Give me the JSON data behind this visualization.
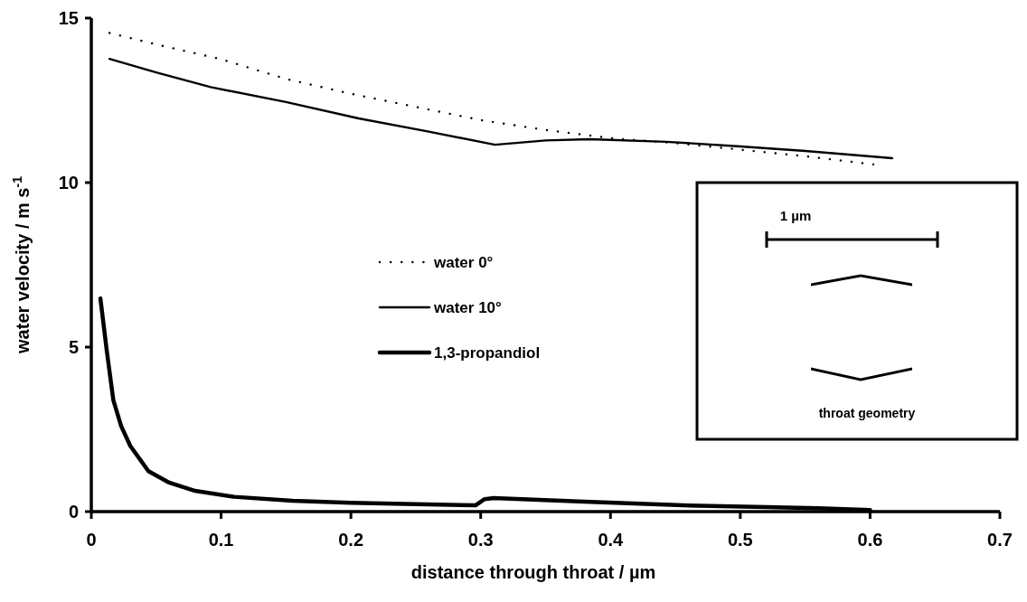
{
  "chart_data": {
    "type": "line",
    "xlabel": "distance through throat / µm",
    "ylabel": "water velocity / m s$^{-1}$",
    "xlim": [
      0,
      0.7
    ],
    "xticks": [
      0,
      0.1,
      0.2,
      0.3,
      0.4,
      0.5,
      0.6,
      0.7
    ],
    "ylim": [
      0,
      15
    ],
    "yticks": [
      0,
      5,
      10,
      15
    ],
    "grid": false,
    "legend": "center",
    "marker": "none",
    "annotations": [
      "1 µm",
      "throat geometry"
    ],
    "series": [
      {
        "name": "water 0°",
        "color": "#000000",
        "line_style": "dotted",
        "x": [
          0.014,
          0.05,
          0.1,
          0.15,
          0.2,
          0.25,
          0.3,
          0.35,
          0.4,
          0.45,
          0.5,
          0.55,
          0.603
        ],
        "values": [
          14.55,
          14.2,
          13.75,
          13.15,
          12.7,
          12.3,
          11.9,
          11.6,
          11.35,
          11.2,
          11.0,
          10.8,
          10.55
        ]
      },
      {
        "name": "water 10°",
        "color": "#000000",
        "line_style": "solid",
        "x": [
          0.014,
          0.05,
          0.092,
          0.15,
          0.206,
          0.26,
          0.311,
          0.35,
          0.384,
          0.443,
          0.5,
          0.55,
          0.617
        ],
        "values": [
          13.76,
          13.35,
          12.9,
          12.45,
          11.95,
          11.55,
          11.15,
          11.28,
          11.32,
          11.24,
          11.1,
          10.96,
          10.74
        ]
      },
      {
        "name": "1,3-propandiol",
        "color": "#000000",
        "line_style": "solid",
        "x": [
          0.007,
          0.012,
          0.017,
          0.023,
          0.03,
          0.044,
          0.06,
          0.08,
          0.11,
          0.155,
          0.2,
          0.25,
          0.296,
          0.303,
          0.31,
          0.38,
          0.456,
          0.52,
          0.56,
          0.6
        ],
        "values": [
          6.48,
          4.86,
          3.38,
          2.6,
          2.0,
          1.23,
          0.88,
          0.63,
          0.45,
          0.33,
          0.27,
          0.23,
          0.19,
          0.38,
          0.41,
          0.3,
          0.19,
          0.14,
          0.1,
          0.05
        ]
      }
    ]
  }
}
